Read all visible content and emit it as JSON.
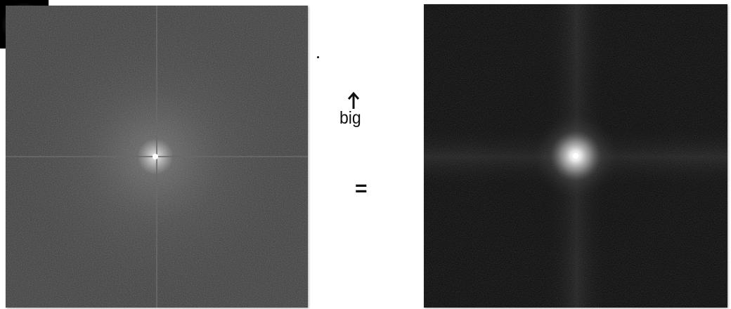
{
  "filter": {
    "label": "big"
  },
  "operators": {
    "multiply": "·",
    "equals": "="
  },
  "colors": {
    "background": "#ffffff",
    "spectrum_gray": "#3a3a3a",
    "result_black": "#050505",
    "annotation": "#111111"
  },
  "icons": {
    "arrow": "arrow-up-icon"
  }
}
